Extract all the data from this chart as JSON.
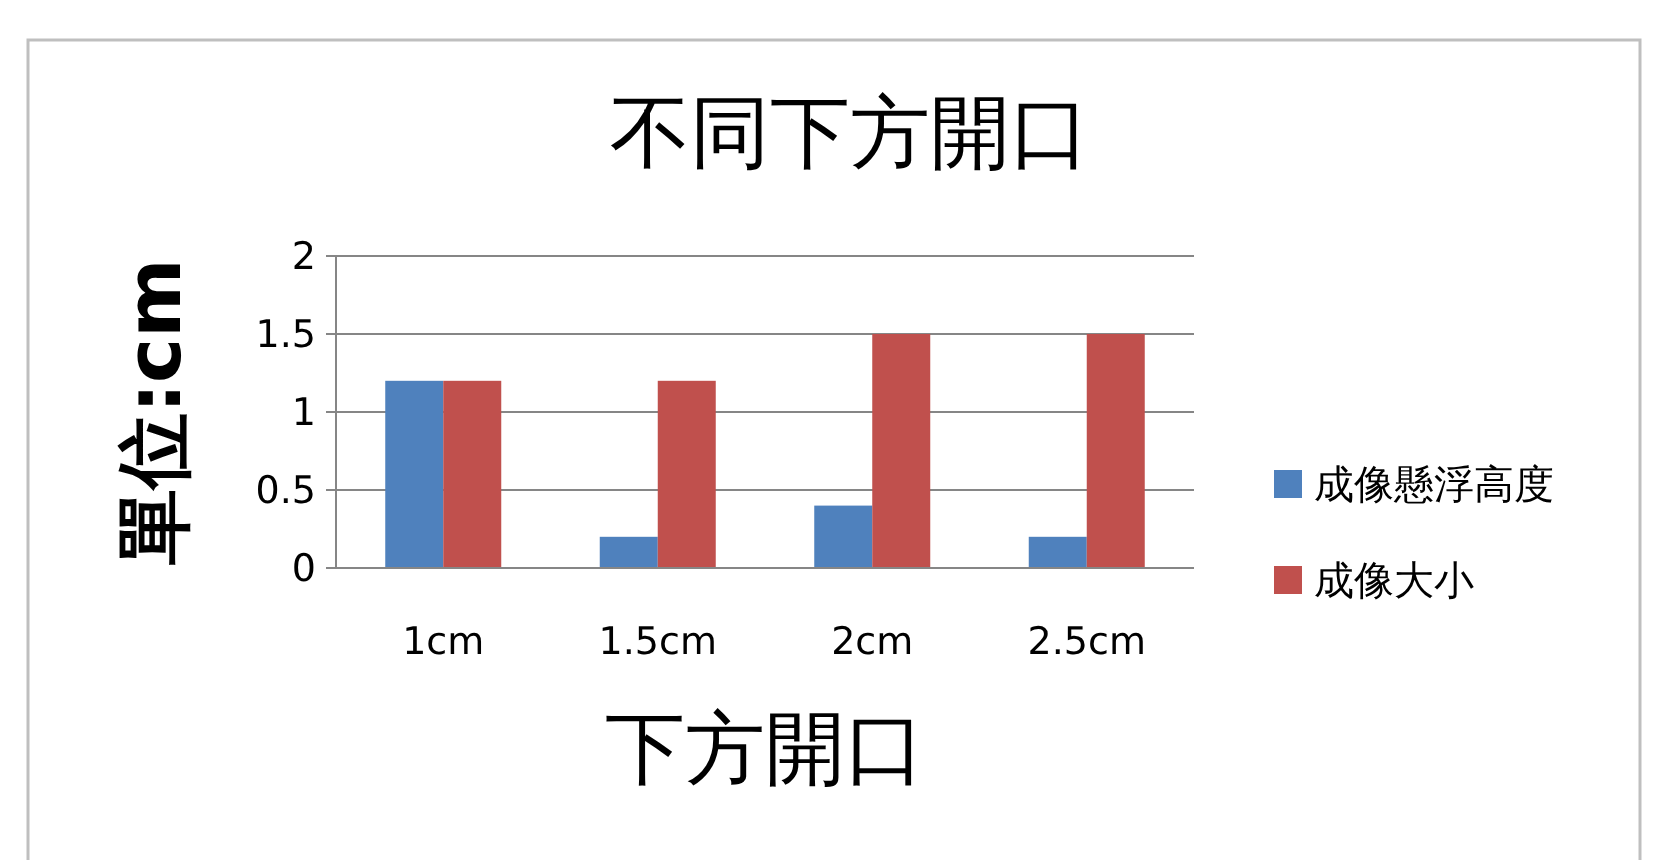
{
  "chart_data": {
    "type": "bar",
    "title": "不同下方開口",
    "xlabel": "下方開口",
    "ylabel": "單位:cm",
    "categories": [
      "1cm",
      "1.5cm",
      "2cm",
      "2.5cm"
    ],
    "series": [
      {
        "name": "成像懸浮高度",
        "color": "#4f81bd",
        "values": [
          1.2,
          0.2,
          0.4,
          0.2
        ]
      },
      {
        "name": "成像大小",
        "color": "#c0504d",
        "values": [
          1.2,
          1.2,
          1.5,
          1.5
        ]
      }
    ],
    "ylim": [
      0,
      2
    ],
    "yticks": [
      0,
      0.5,
      1,
      1.5,
      2
    ],
    "grid": "y",
    "legend": "right"
  }
}
